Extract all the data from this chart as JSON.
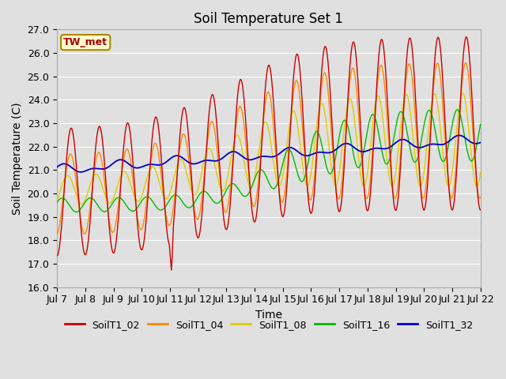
{
  "title": "Soil Temperature Set 1",
  "xlabel": "Time",
  "ylabel": "Soil Temperature (C)",
  "ylim": [
    16.0,
    27.0
  ],
  "yticks": [
    16.0,
    17.0,
    18.0,
    19.0,
    20.0,
    21.0,
    22.0,
    23.0,
    24.0,
    25.0,
    26.0,
    27.0
  ],
  "xtick_labels": [
    "Jul 7",
    "Jul 8",
    "Jul 9",
    "Jul 10",
    "Jul 11",
    "Jul 12",
    "Jul 13",
    "Jul 14",
    "Jul 15",
    "Jul 16",
    "Jul 17",
    "Jul 18",
    "Jul 19",
    "Jul 20",
    "Jul 21",
    "Jul 22"
  ],
  "series_colors": {
    "SoilT1_02": "#cc0000",
    "SoilT1_04": "#ff8800",
    "SoilT1_08": "#ddcc00",
    "SoilT1_16": "#00bb00",
    "SoilT1_32": "#0000cc"
  },
  "annotation_text": "TW_met",
  "annotation_color": "#aa0000",
  "annotation_bg": "#ffffcc",
  "annotation_border": "#aa8800",
  "bg_color": "#e0e0e0",
  "plot_bg_color": "#e0e0e0",
  "grid_color": "#ffffff",
  "title_fontsize": 12,
  "axis_fontsize": 10,
  "tick_fontsize": 9
}
